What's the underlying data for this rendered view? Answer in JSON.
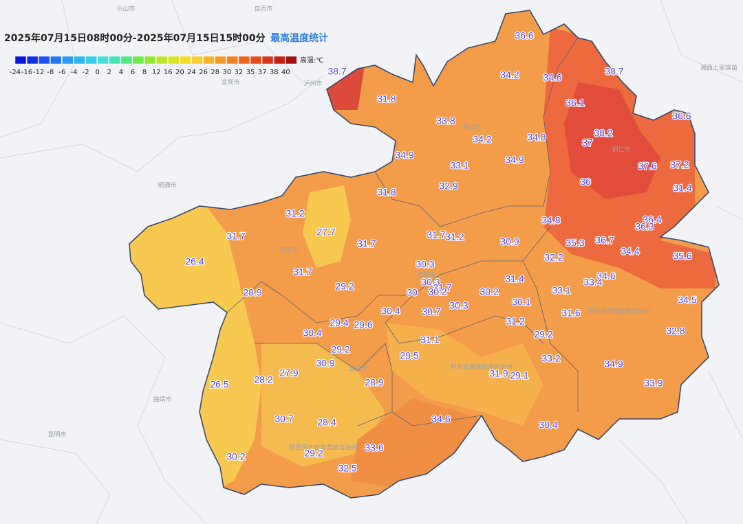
{
  "header": {
    "title": "2025年07月15日08时00分-2025年07月15日15时00分",
    "subtitle": "最高温度统计"
  },
  "legend": {
    "unit": "高温:℃",
    "labels": [
      -24,
      -16,
      -12,
      -8,
      -6,
      -4,
      -2,
      0,
      2,
      4,
      6,
      8,
      12,
      16,
      20,
      24,
      26,
      28,
      30,
      32,
      35,
      37,
      38,
      40
    ]
  },
  "places": [
    "乐山市",
    "自贡市",
    "宜宾市",
    "泸州市",
    "昭通市",
    "曲靖市",
    "昆明市",
    "湘西土家族苗",
    "铜仁市",
    "遵义市",
    "毕节市",
    "贵阳市",
    "安顺市",
    "黔南布依族苗族自治州",
    "黔东南苗族侗族自治州",
    "黔西南布依族苗族自治州"
  ],
  "stations": [
    36.6,
    38.7,
    34.2,
    34.6,
    38.7,
    31.8,
    36.1,
    36.6,
    33.8,
    38.2,
    37,
    34.2,
    34.8,
    34.9,
    33.1,
    34.9,
    37.6,
    37.2,
    36,
    32.9,
    31.8,
    31.4,
    31.2,
    34.8,
    36.4,
    36.3,
    27.7,
    31.7,
    31.7,
    31.7,
    31.2,
    30.9,
    35.3,
    36.7,
    34.4,
    35.6,
    26.4,
    30.3,
    32.2,
    31.7,
    34.6,
    33.4,
    30.3,
    31.4,
    29.2,
    28.9,
    31.7,
    30.2,
    30,
    30.2,
    33.1,
    30.1,
    34.5,
    30.3,
    30.4,
    30.7,
    31.6,
    29.4,
    29.6,
    31.2,
    30.4,
    32.8,
    29.2,
    31.1,
    29.2,
    29.5,
    33.2,
    30.9,
    34.9,
    27.9,
    28.2,
    31.9,
    29.1,
    28.9,
    26.5,
    33.9,
    34.6,
    30.7,
    28.4,
    30.4,
    33.6,
    29.2,
    30.2,
    32.5
  ]
}
